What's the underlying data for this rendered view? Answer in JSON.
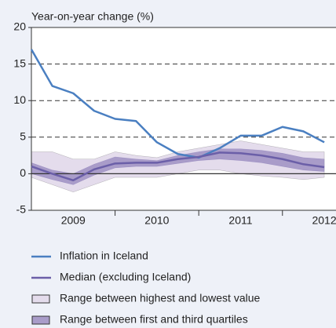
{
  "chart_data": {
    "type": "line",
    "ylabel": "Year-on-year change (%)",
    "x": [
      2009,
      2009.25,
      2009.5,
      2009.75,
      2010,
      2010.25,
      2010.5,
      2010.75,
      2011,
      2011.25,
      2011.5,
      2011.75,
      2012,
      2012.25,
      2012.5
    ],
    "xlim": [
      2009,
      2012.64
    ],
    "xticks": [
      2010,
      2011,
      2012
    ],
    "x_tick_labels": [
      {
        "value": 2009.5,
        "label": "2009"
      },
      {
        "value": 2010.5,
        "label": "2010"
      },
      {
        "value": 2011.5,
        "label": "2011"
      },
      {
        "value": 2012.5,
        "label": "2012"
      }
    ],
    "ylim": [
      -5,
      20
    ],
    "yticks": [
      -5,
      0,
      5,
      10,
      15,
      20
    ],
    "grid": true,
    "bands": [
      {
        "name": "Range between highest and lowest value",
        "color": "#e4dcec",
        "edge": "#555555",
        "low": [
          -0.5,
          -1.5,
          -2.5,
          -1.5,
          -0.5,
          -0.5,
          -0.5,
          0.0,
          0.5,
          0.5,
          0.0,
          -0.3,
          -0.5,
          -0.8,
          -0.5
        ],
        "high": [
          3.0,
          3.0,
          2.0,
          2.0,
          3.0,
          2.5,
          2.2,
          3.0,
          3.5,
          4.0,
          4.5,
          4.0,
          3.5,
          3.0,
          3.0
        ]
      },
      {
        "name": "Range between first and third quartiles",
        "color": "#a99cc9",
        "edge": "#6b5fa8",
        "low": [
          0.0,
          -0.8,
          -1.5,
          -0.2,
          0.8,
          1.0,
          1.0,
          1.4,
          1.8,
          2.0,
          1.8,
          1.5,
          1.0,
          0.5,
          0.3
        ],
        "high": [
          1.5,
          0.5,
          0.0,
          1.3,
          2.3,
          2.0,
          1.8,
          2.5,
          3.0,
          3.4,
          3.4,
          3.2,
          2.8,
          2.2,
          2.0
        ]
      }
    ],
    "series": [
      {
        "name": "Inflation in Iceland",
        "color": "#4a7fc1",
        "values": [
          17.0,
          12.0,
          11.0,
          8.6,
          7.5,
          7.2,
          4.3,
          2.7,
          2.2,
          3.5,
          5.2,
          5.2,
          6.4,
          5.8,
          4.3
        ]
      },
      {
        "name": "Median (excluding Iceland)",
        "color": "#6b5fa8",
        "values": [
          1.0,
          0.0,
          -0.9,
          0.6,
          1.4,
          1.5,
          1.5,
          2.0,
          2.3,
          2.9,
          2.8,
          2.5,
          2.0,
          1.3,
          0.9
        ]
      }
    ],
    "legend_order": [
      "series.0",
      "series.1",
      "bands.0",
      "bands.1"
    ]
  }
}
